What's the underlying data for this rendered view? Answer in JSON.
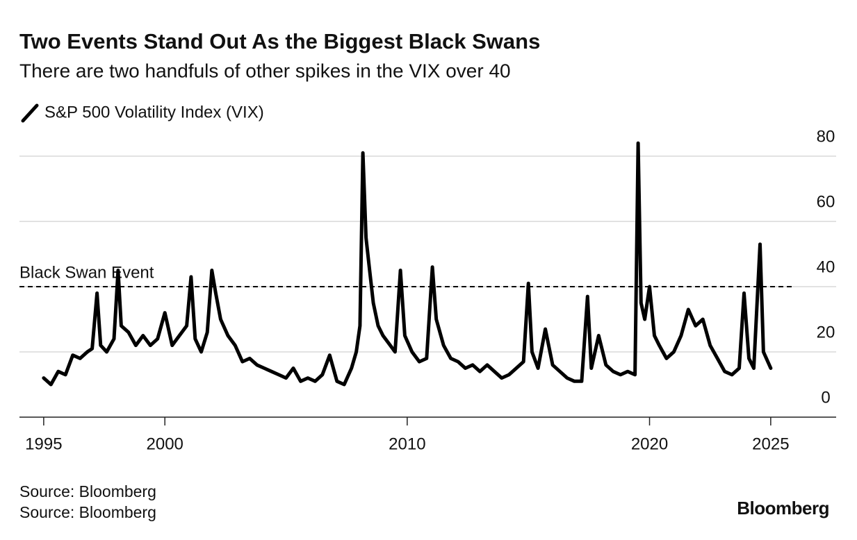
{
  "chart_data": {
    "type": "line",
    "title": "Two Events Stand Out As the Biggest Black Swans",
    "subtitle": "There are two handfuls of other spikes in the VIX over 40",
    "series": [
      {
        "name": "S&P 500 Volatility Index (VIX)",
        "color": "#000000",
        "x": [
          1995,
          1995.3,
          1995.6,
          1995.9,
          1996.2,
          1996.5,
          1996.8,
          1997.0,
          1997.2,
          1997.35,
          1997.6,
          1997.9,
          1998.07,
          1998.2,
          1998.5,
          1998.8,
          1999.1,
          1999.4,
          1999.7,
          2000.0,
          2000.3,
          2000.6,
          2000.9,
          2001.08,
          2001.25,
          2001.5,
          2001.75,
          2001.94,
          2002.1,
          2002.3,
          2002.6,
          2002.9,
          2003.2,
          2003.5,
          2003.8,
          2004.1,
          2004.4,
          2004.7,
          2005.0,
          2005.3,
          2005.6,
          2005.9,
          2006.2,
          2006.5,
          2006.8,
          2007.1,
          2007.4,
          2007.7,
          2007.9,
          2008.05,
          2008.17,
          2008.3,
          2008.45,
          2008.6,
          2008.8,
          2009.0,
          2009.3,
          2009.5,
          2009.72,
          2009.9,
          2010.2,
          2010.5,
          2010.8,
          2011.04,
          2011.2,
          2011.5,
          2011.8,
          2012.1,
          2012.4,
          2012.7,
          2013.0,
          2013.3,
          2013.6,
          2013.9,
          2014.2,
          2014.5,
          2014.8,
          2015.0,
          2015.15,
          2015.4,
          2015.7,
          2016.0,
          2016.3,
          2016.6,
          2016.9,
          2017.2,
          2017.44,
          2017.6,
          2017.9,
          2018.2,
          2018.5,
          2018.8,
          2019.1,
          2019.4,
          2019.53,
          2019.65,
          2019.8,
          2020.0,
          2020.2,
          2020.4,
          2020.7,
          2021.0,
          2021.3,
          2021.6,
          2021.9,
          2022.2,
          2022.5,
          2022.8,
          2023.1,
          2023.4,
          2023.7,
          2023.9,
          2024.1,
          2024.3,
          2024.56,
          2024.7,
          2025.0
        ],
        "values": [
          12,
          10,
          14,
          13,
          19,
          18,
          20,
          21,
          38,
          22,
          20,
          24,
          45,
          28,
          26,
          22,
          25,
          22,
          24,
          32,
          22,
          25,
          28,
          43,
          24,
          20,
          26,
          45,
          38,
          30,
          25,
          22,
          17,
          18,
          16,
          15,
          14,
          13,
          12,
          15,
          11,
          12,
          11,
          13,
          19,
          11,
          10,
          15,
          20,
          28,
          81,
          55,
          45,
          35,
          28,
          25,
          22,
          20,
          45,
          25,
          20,
          17,
          18,
          46,
          30,
          22,
          18,
          17,
          15,
          16,
          14,
          16,
          14,
          12,
          13,
          15,
          17,
          41,
          20,
          15,
          27,
          16,
          14,
          12,
          11,
          11,
          37,
          15,
          25,
          16,
          14,
          13,
          14,
          13,
          84,
          35,
          30,
          40,
          25,
          22,
          18,
          20,
          25,
          33,
          28,
          30,
          22,
          18,
          14,
          13,
          15,
          38,
          18,
          15,
          53,
          20,
          15
        ]
      }
    ],
    "threshold": {
      "value": 40,
      "label": "Black Swan Event"
    },
    "xlim": [
      1994,
      2027.7
    ],
    "xticks": [
      1995,
      2000,
      2010,
      2020,
      2025
    ],
    "ylim": [
      0,
      80
    ],
    "yticks": [
      0,
      20,
      40,
      60,
      80
    ],
    "grid": true,
    "sources": [
      "Source: Bloomberg",
      "Source: Bloomberg"
    ],
    "brand": "Bloomberg"
  }
}
